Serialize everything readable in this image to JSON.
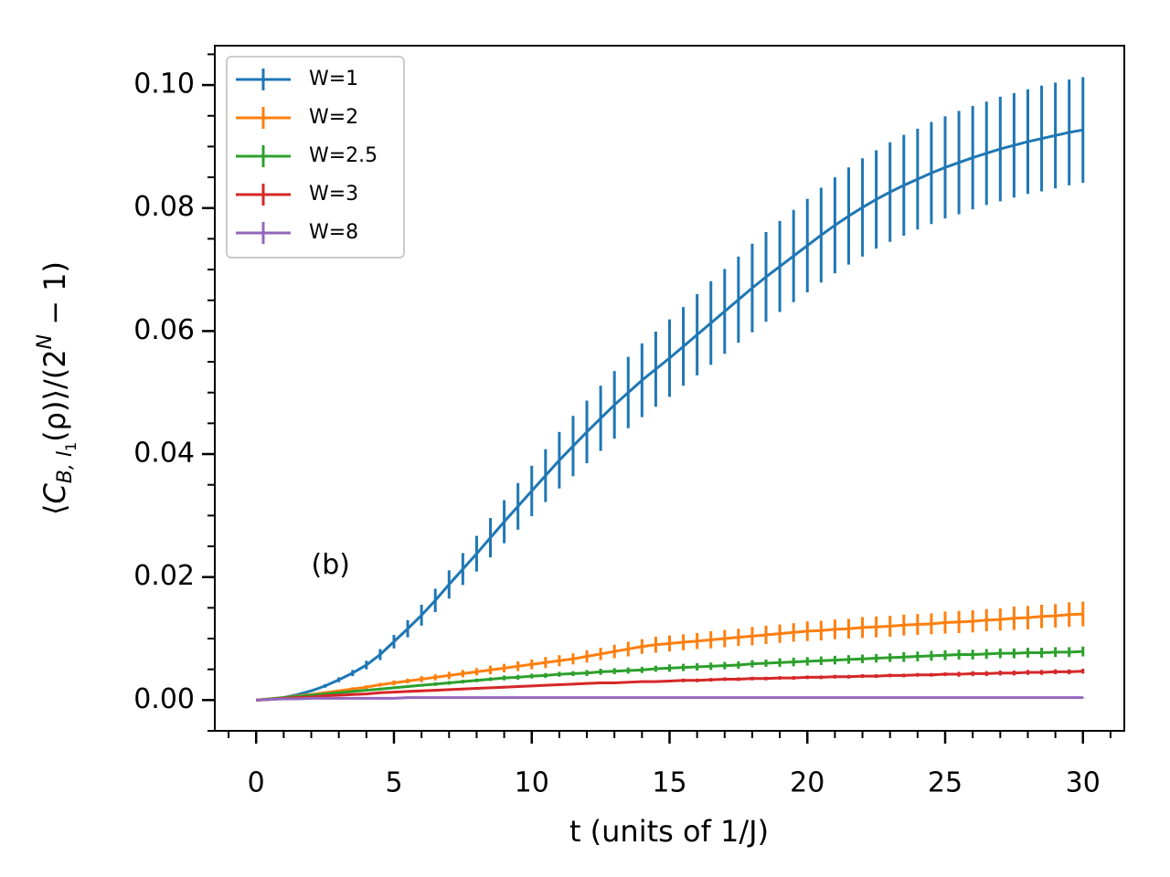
{
  "chart_data": {
    "type": "line",
    "xlabel": "t (units of 1/J)",
    "ylabel": [
      "⟨",
      "C",
      "B, l",
      "1",
      "(ρ)⟩/(2",
      "N",
      " − 1)"
    ],
    "annotation": {
      "text": "(b)",
      "x": 2,
      "y": 0.0218
    },
    "xlim": [
      -1.5,
      31.5
    ],
    "ylim": [
      -0.005,
      0.1064
    ],
    "xticks": [
      0,
      5,
      10,
      15,
      20,
      25,
      30
    ],
    "yticks": [
      {
        "value": 0,
        "label": "0.00"
      },
      0.02,
      0.04,
      0.06,
      0.08,
      {
        "value": 0.1,
        "label": "0.10"
      }
    ],
    "minor_xstep": 1,
    "minor_ystep": 0.005,
    "legend": "upper left",
    "x": [
      0,
      0.5,
      1,
      1.5,
      2,
      2.5,
      3,
      3.5,
      4,
      4.5,
      5,
      5.5,
      6,
      6.5,
      7,
      7.5,
      8,
      8.5,
      9,
      9.5,
      10,
      10.5,
      11,
      11.5,
      12,
      12.5,
      13,
      13.5,
      14,
      14.5,
      15,
      15.5,
      16,
      16.5,
      17,
      17.5,
      18,
      18.5,
      19,
      19.5,
      20,
      20.5,
      21,
      21.5,
      22,
      22.5,
      23,
      23.5,
      24,
      24.5,
      25,
      25.5,
      26,
      26.5,
      27,
      27.5,
      28,
      28.5,
      29,
      29.5,
      30
    ],
    "series": [
      {
        "name": "W=1",
        "color": "#1f77b4",
        "values": [
          0,
          0.0001,
          0.0004,
          0.0009,
          0.0015,
          0.0023,
          0.0033,
          0.0044,
          0.0057,
          0.0074,
          0.0095,
          0.0116,
          0.0138,
          0.0162,
          0.0188,
          0.0213,
          0.0238,
          0.0264,
          0.029,
          0.0315,
          0.034,
          0.0365,
          0.039,
          0.0413,
          0.0436,
          0.0458,
          0.048,
          0.05,
          0.052,
          0.0538,
          0.0556,
          0.0575,
          0.0594,
          0.0613,
          0.0632,
          0.0651,
          0.067,
          0.0688,
          0.0705,
          0.0722,
          0.0739,
          0.0756,
          0.0772,
          0.0787,
          0.0801,
          0.0814,
          0.0826,
          0.0837,
          0.0847,
          0.0857,
          0.0866,
          0.0874,
          0.0882,
          0.0889,
          0.0896,
          0.0902,
          0.0908,
          0.0913,
          0.0918,
          0.0923,
          0.0927
        ],
        "errors": [
          0,
          0,
          0,
          0.0001,
          0.0002,
          0.0003,
          0.0004,
          0.0005,
          0.0007,
          0.0009,
          0.0011,
          0.0014,
          0.0017,
          0.0019,
          0.0023,
          0.0026,
          0.0029,
          0.0032,
          0.0035,
          0.0038,
          0.0041,
          0.0043,
          0.0046,
          0.0049,
          0.0051,
          0.0053,
          0.0055,
          0.0058,
          0.006,
          0.0061,
          0.0063,
          0.0064,
          0.0066,
          0.0068,
          0.0069,
          0.007,
          0.0072,
          0.0073,
          0.0074,
          0.0075,
          0.0076,
          0.0077,
          0.0078,
          0.0079,
          0.008,
          0.008,
          0.0081,
          0.0082,
          0.0082,
          0.0083,
          0.0083,
          0.0084,
          0.0084,
          0.0084,
          0.0085,
          0.0085,
          0.0085,
          0.0086,
          0.0086,
          0.0086,
          0.0086
        ]
      },
      {
        "name": "W=2",
        "color": "#ff7f0e",
        "values": [
          0,
          0.0002,
          0.0004,
          0.0007,
          0.0009,
          0.0012,
          0.0015,
          0.0018,
          0.0021,
          0.0025,
          0.0028,
          0.0031,
          0.0034,
          0.0037,
          0.004,
          0.0043,
          0.0046,
          0.0049,
          0.0052,
          0.0055,
          0.0058,
          0.0061,
          0.0064,
          0.0067,
          0.0071,
          0.0075,
          0.0079,
          0.0083,
          0.0087,
          0.009,
          0.0092,
          0.0094,
          0.0096,
          0.0098,
          0.01,
          0.0102,
          0.0104,
          0.0106,
          0.0108,
          0.011,
          0.0112,
          0.0113,
          0.0115,
          0.0116,
          0.0118,
          0.0119,
          0.012,
          0.0122,
          0.0123,
          0.0124,
          0.0126,
          0.0127,
          0.0128,
          0.013,
          0.0131,
          0.0133,
          0.0134,
          0.0136,
          0.0137,
          0.0139,
          0.014
        ],
        "errors": [
          0,
          0,
          0.0001,
          0.0001,
          0.0001,
          0.0002,
          0.0002,
          0.0003,
          0.0003,
          0.0003,
          0.0004,
          0.0004,
          0.0005,
          0.0005,
          0.0006,
          0.0006,
          0.0006,
          0.0007,
          0.0007,
          0.0008,
          0.0008,
          0.0009,
          0.0009,
          0.0009,
          0.001,
          0.001,
          0.0011,
          0.0012,
          0.0012,
          0.0013,
          0.0013,
          0.0013,
          0.0013,
          0.0014,
          0.0014,
          0.0014,
          0.0015,
          0.0015,
          0.0015,
          0.0015,
          0.0016,
          0.0016,
          0.0016,
          0.0016,
          0.0017,
          0.0017,
          0.0017,
          0.0017,
          0.0017,
          0.0017,
          0.0018,
          0.0018,
          0.0018,
          0.0018,
          0.0018,
          0.0019,
          0.0019,
          0.0019,
          0.0019,
          0.002,
          0.002
        ]
      },
      {
        "name": "W=2.5",
        "color": "#2ca02c",
        "values": [
          0,
          0.0002,
          0.0004,
          0.0006,
          0.0008,
          0.001,
          0.0012,
          0.0014,
          0.0016,
          0.0018,
          0.002,
          0.0022,
          0.0024,
          0.0026,
          0.0028,
          0.003,
          0.0032,
          0.0034,
          0.0036,
          0.0037,
          0.0039,
          0.004,
          0.0042,
          0.0043,
          0.0044,
          0.0046,
          0.0047,
          0.0048,
          0.0049,
          0.0051,
          0.0052,
          0.0053,
          0.0054,
          0.0055,
          0.0056,
          0.0057,
          0.0059,
          0.006,
          0.0061,
          0.0062,
          0.0063,
          0.0064,
          0.0065,
          0.0066,
          0.0067,
          0.0068,
          0.0069,
          0.007,
          0.0071,
          0.0072,
          0.0073,
          0.0074,
          0.0074,
          0.0075,
          0.0076,
          0.0076,
          0.0077,
          0.0077,
          0.0078,
          0.0078,
          0.0079
        ],
        "errors": [
          0,
          0,
          0,
          0.0001,
          0.0001,
          0.0001,
          0.0001,
          0.0002,
          0.0002,
          0.0002,
          0.0002,
          0.0002,
          0.0002,
          0.0003,
          0.0003,
          0.0003,
          0.0003,
          0.0003,
          0.0004,
          0.0004,
          0.0004,
          0.0004,
          0.0004,
          0.0004,
          0.0005,
          0.0005,
          0.0005,
          0.0005,
          0.0005,
          0.0005,
          0.0006,
          0.0006,
          0.0006,
          0.0006,
          0.0006,
          0.0006,
          0.0006,
          0.0006,
          0.0007,
          0.0007,
          0.0007,
          0.0007,
          0.0007,
          0.0007,
          0.0007,
          0.0007,
          0.0007,
          0.0008,
          0.0008,
          0.0008,
          0.0008,
          0.0008,
          0.0008,
          0.0008,
          0.0008,
          0.0008,
          0.0008,
          0.0008,
          0.0008,
          0.0008,
          0.0008
        ]
      },
      {
        "name": "W=3",
        "color": "#d62728",
        "values": [
          0,
          0.0001,
          0.0003,
          0.0004,
          0.0005,
          0.0007,
          0.0008,
          0.0009,
          0.001,
          0.0012,
          0.0013,
          0.0014,
          0.0015,
          0.0016,
          0.0017,
          0.0018,
          0.0019,
          0.002,
          0.0021,
          0.0022,
          0.0023,
          0.0024,
          0.0025,
          0.0026,
          0.0027,
          0.0028,
          0.0028,
          0.0029,
          0.003,
          0.003,
          0.0031,
          0.0032,
          0.0032,
          0.0033,
          0.0034,
          0.0034,
          0.0035,
          0.0035,
          0.0036,
          0.0036,
          0.0037,
          0.0037,
          0.0038,
          0.0038,
          0.0039,
          0.0039,
          0.004,
          0.004,
          0.0041,
          0.0041,
          0.0042,
          0.0042,
          0.0043,
          0.0043,
          0.0044,
          0.0044,
          0.0045,
          0.0045,
          0.0046,
          0.0046,
          0.0047
        ],
        "errors": [
          0,
          0,
          0,
          0,
          0,
          0.0001,
          0.0001,
          0.0001,
          0.0001,
          0.0001,
          0.0001,
          0.0002,
          0.0002,
          0.0002,
          0.0002,
          0.0002,
          0.0002,
          0.0002,
          0.0002,
          0.0002,
          0.0002,
          0.0002,
          0.0002,
          0.0002,
          0.0002,
          0.0002,
          0.0002,
          0.0002,
          0.0002,
          0.0002,
          0.0002,
          0.0003,
          0.0003,
          0.0003,
          0.0003,
          0.0003,
          0.0003,
          0.0003,
          0.0003,
          0.0003,
          0.0003,
          0.0003,
          0.0003,
          0.0003,
          0.0003,
          0.0003,
          0.0003,
          0.0003,
          0.0003,
          0.0003,
          0.0003,
          0.0004,
          0.0004,
          0.0004,
          0.0004,
          0.0004,
          0.0004,
          0.0004,
          0.0004,
          0.0004,
          0.0004
        ]
      },
      {
        "name": "W=8",
        "color": "#9467bd",
        "values": [
          0,
          0.0001,
          0.0002,
          0.0002,
          0.0003,
          0.0003,
          0.0003,
          0.0003,
          0.0003,
          0.0003,
          0.0003,
          0.0004,
          0.0004,
          0.0004,
          0.0004,
          0.0004,
          0.0004,
          0.0004,
          0.0004,
          0.0004,
          0.0004,
          0.0004,
          0.0004,
          0.0004,
          0.0004,
          0.0004,
          0.0004,
          0.0004,
          0.0004,
          0.0004,
          0.0004,
          0.0004,
          0.0004,
          0.0004,
          0.0004,
          0.0004,
          0.0004,
          0.0004,
          0.0004,
          0.0004,
          0.0004,
          0.0004,
          0.0004,
          0.0004,
          0.0004,
          0.0004,
          0.0004,
          0.0004,
          0.0004,
          0.0004,
          0.0004,
          0.0004,
          0.0004,
          0.0004,
          0.0004,
          0.0004,
          0.0004,
          0.0004,
          0.0004,
          0.0004,
          0.0004
        ],
        "errors": [
          0,
          0,
          0,
          0,
          0,
          0,
          0.0001,
          0.0001,
          0.0001,
          0.0001,
          0.0001,
          0.0001,
          0.0001,
          0.0001,
          0.0001,
          0.0001,
          0.0001,
          0.0001,
          0.0001,
          0.0001,
          0.0001,
          0.0001,
          0.0001,
          0.0001,
          0.0001,
          0.0001,
          0.0001,
          0.0001,
          0.0001,
          0.0001,
          0.0001,
          0.0001,
          0.0001,
          0.0001,
          0.0001,
          0.0001,
          0.0001,
          0.0001,
          0.0001,
          0.0001,
          0.0001,
          0.0001,
          0.0001,
          0.0001,
          0.0001,
          0.0001,
          0.0001,
          0.0001,
          0.0001,
          0.0001,
          0.0001,
          0.0001,
          0.0001,
          0.0001,
          0.0001,
          0.0001,
          0.0001,
          0.0001,
          0.0001,
          0.0001,
          0.0001
        ]
      }
    ]
  }
}
